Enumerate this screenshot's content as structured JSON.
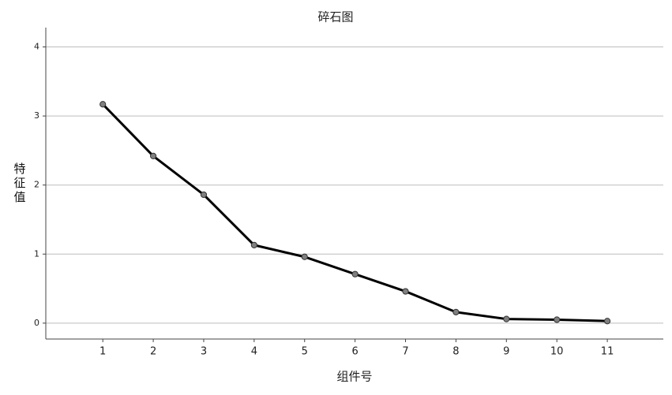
{
  "chart_data": {
    "type": "line",
    "title": "碎石图",
    "x_label": "组件号",
    "y_label": "特征值",
    "x": [
      1,
      2,
      3,
      4,
      5,
      6,
      7,
      8,
      9,
      10,
      11
    ],
    "series": [
      {
        "name": "特征值",
        "color": "#000000",
        "marker_color": "#808080",
        "values": [
          3.17,
          2.42,
          1.86,
          1.13,
          0.96,
          0.71,
          0.46,
          0.16,
          0.06,
          0.05,
          0.03
        ]
      }
    ],
    "xlim": [
      -0.13,
      12.11
    ],
    "xticks": [
      1,
      2,
      3,
      4,
      5,
      6,
      7,
      8,
      9,
      10,
      11
    ],
    "ylim": [
      -0.23,
      4.28
    ],
    "yticks": [
      0,
      1,
      2,
      3,
      4
    ],
    "grid": true
  }
}
